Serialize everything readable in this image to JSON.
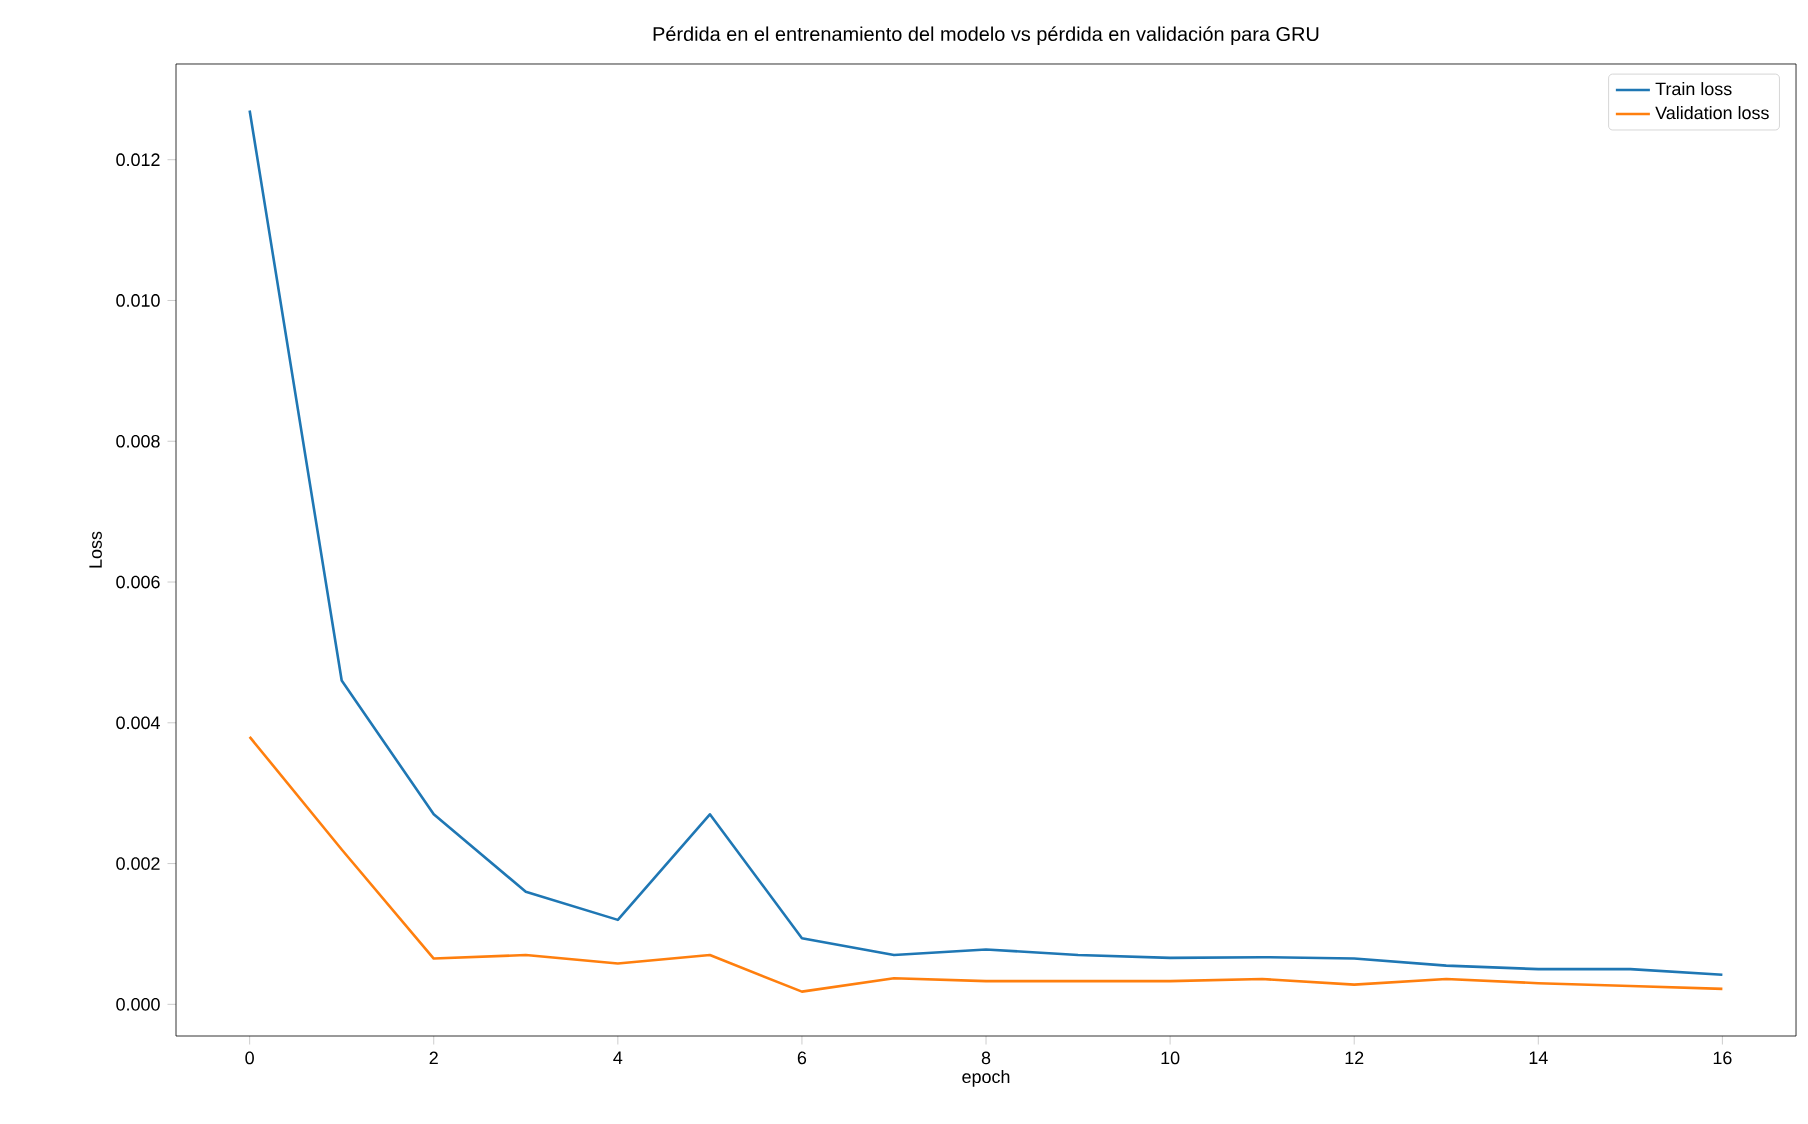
{
  "chart_data": {
    "type": "line",
    "title": "Pérdida en el entrenamiento del modelo vs pérdida en validación para GRU",
    "xlabel": "epoch",
    "ylabel": "Loss",
    "x": [
      0,
      1,
      2,
      3,
      4,
      5,
      6,
      7,
      8,
      9,
      10,
      11,
      12,
      13,
      14,
      15,
      16
    ],
    "series": [
      {
        "name": "Train loss",
        "color": "#1f77b4",
        "values": [
          0.0127,
          0.0046,
          0.0027,
          0.0016,
          0.0012,
          0.0027,
          0.00094,
          0.0007,
          0.00078,
          0.0007,
          0.00066,
          0.00067,
          0.00065,
          0.00055,
          0.0005,
          0.0005,
          0.00042
        ]
      },
      {
        "name": "Validation loss",
        "color": "#ff7f0e",
        "values": [
          0.0038,
          0.0022,
          0.00065,
          0.0007,
          0.00058,
          0.0007,
          0.00018,
          0.00037,
          0.00033,
          0.00033,
          0.00033,
          0.00036,
          0.00028,
          0.00036,
          0.0003,
          0.00026,
          0.00022
        ]
      }
    ],
    "xlim": [
      -0.8,
      16.8
    ],
    "ylim": [
      -0.00045,
      0.01336
    ],
    "xticks": [
      0,
      2,
      4,
      6,
      8,
      10,
      12,
      14,
      16
    ],
    "yticks": [
      {
        "value": 0,
        "label": "0.000"
      },
      {
        "value": 0.002,
        "label": "0.002"
      },
      {
        "value": 0.004,
        "label": "0.004"
      },
      {
        "value": 0.006,
        "label": "0.006"
      },
      {
        "value": 0.008,
        "label": "0.008"
      },
      {
        "value": 0.01,
        "label": "0.010"
      },
      {
        "value": 0.012,
        "label": "0.012"
      }
    ],
    "legend": "top right",
    "grid": false,
    "marker": "none",
    "line_style": "solid"
  }
}
